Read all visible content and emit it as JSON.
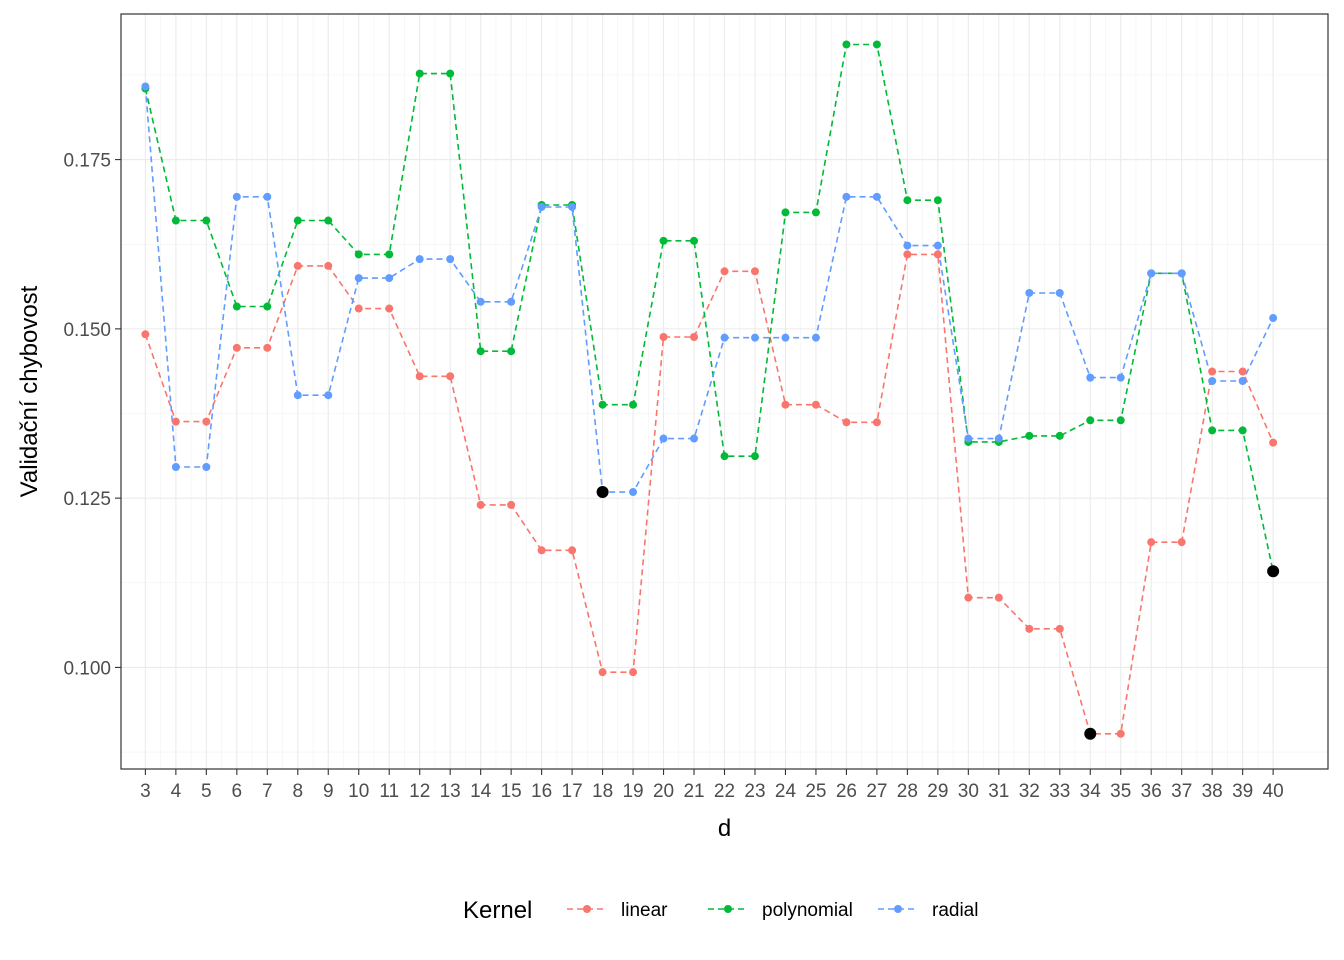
{
  "chart_data": {
    "type": "line",
    "title": "",
    "xlabel": "d",
    "ylabel": "Validační chybovost",
    "x": [
      3,
      4,
      5,
      6,
      7,
      8,
      9,
      10,
      11,
      12,
      13,
      14,
      15,
      16,
      17,
      18,
      19,
      20,
      21,
      22,
      23,
      24,
      25,
      26,
      27,
      28,
      29,
      30,
      31,
      32,
      33,
      34,
      35,
      36,
      37,
      38,
      39,
      40
    ],
    "xlim": [
      2.2,
      41.8
    ],
    "ylim": [
      0.085,
      0.1965
    ],
    "yticks": [
      0.1,
      0.125,
      0.15,
      0.175
    ],
    "ytick_labels": [
      "0.100",
      "0.125",
      "0.150",
      "0.175"
    ],
    "grid": true,
    "line_style": "dashed",
    "legend": {
      "title": "Kernel",
      "position": "bottom"
    },
    "series": [
      {
        "name": "linear",
        "color": "#F8766D",
        "values": [
          0.1492,
          0.1363,
          0.1363,
          0.1472,
          0.1472,
          0.1593,
          0.1593,
          0.153,
          0.153,
          0.143,
          0.143,
          0.124,
          0.124,
          0.1173,
          0.1173,
          0.0993,
          0.0993,
          0.1488,
          0.1488,
          0.1585,
          0.1585,
          0.1388,
          0.1388,
          0.1362,
          0.1362,
          0.161,
          0.161,
          0.1103,
          0.1103,
          0.1057,
          0.1057,
          0.0902,
          0.0902,
          0.1185,
          0.1185,
          0.1437,
          0.1437,
          0.1332
        ]
      },
      {
        "name": "polynomial",
        "color": "#00BA38",
        "values": [
          0.1855,
          0.166,
          0.166,
          0.1533,
          0.1533,
          0.166,
          0.166,
          0.161,
          0.161,
          0.1877,
          0.1877,
          0.1467,
          0.1467,
          0.1683,
          0.1683,
          0.1388,
          0.1388,
          0.163,
          0.163,
          0.1312,
          0.1312,
          0.1672,
          0.1672,
          0.192,
          0.192,
          0.169,
          0.169,
          0.1333,
          0.1333,
          0.1342,
          0.1342,
          0.1365,
          0.1365,
          0.1582,
          0.1582,
          0.135,
          0.135,
          0.1142
        ]
      },
      {
        "name": "radial",
        "color": "#619CFF",
        "values": [
          0.1858,
          0.1296,
          0.1296,
          0.1695,
          0.1695,
          0.1402,
          0.1402,
          0.1575,
          0.1575,
          0.1603,
          0.1603,
          0.154,
          0.154,
          0.168,
          0.168,
          0.1259,
          0.1259,
          0.1338,
          0.1338,
          0.1487,
          0.1487,
          0.1487,
          0.1487,
          0.1695,
          0.1695,
          0.1623,
          0.1623,
          0.1338,
          0.1338,
          0.1553,
          0.1553,
          0.1428,
          0.1428,
          0.1582,
          0.1582,
          0.1423,
          0.1423,
          0.1516
        ]
      }
    ],
    "highlights": [
      {
        "series": "radial",
        "x": 18,
        "y": 0.1259,
        "color": "#000000"
      },
      {
        "series": "linear",
        "x": 34,
        "y": 0.0902,
        "color": "#000000"
      },
      {
        "series": "polynomial",
        "x": 40,
        "y": 0.1142,
        "color": "#000000"
      }
    ]
  }
}
